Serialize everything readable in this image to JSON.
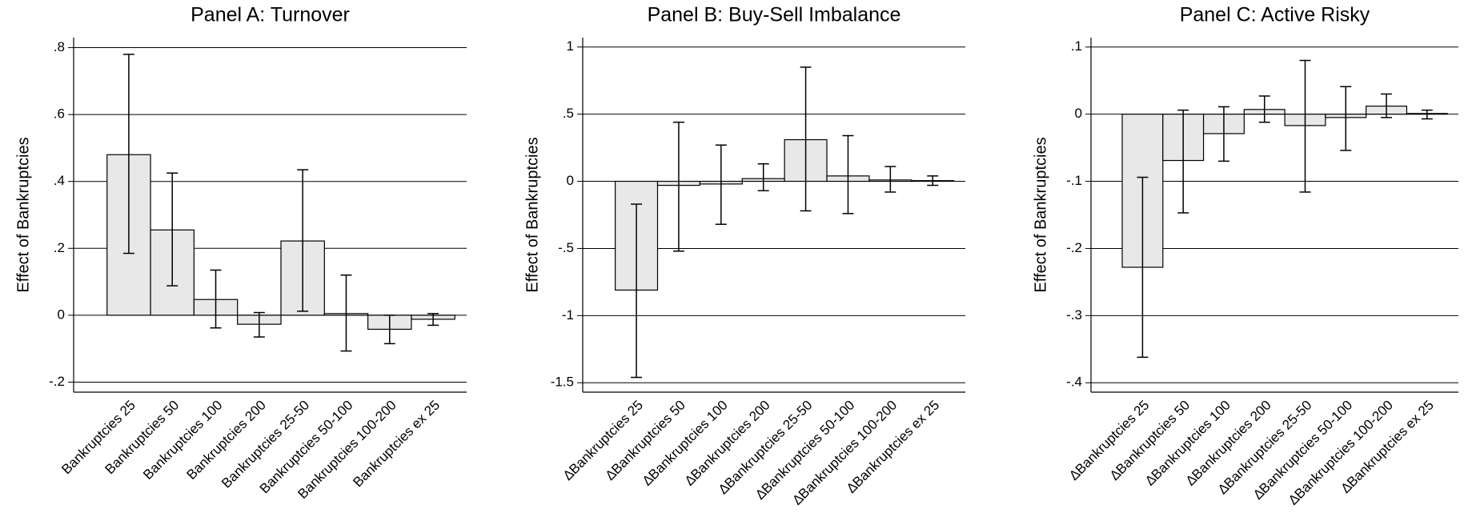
{
  "chart_data": [
    {
      "type": "bar",
      "title": "Panel A: Turnover",
      "ylabel": "Effect of Bankruptcies",
      "categories": [
        "Bankruptcies 25",
        "Bankruptcies 50",
        "Bankruptcies 100",
        "Bankruptcies 200",
        "Bankruptcies 25-50",
        "Bankruptcies 50-100",
        "Bankruptcies 100-200",
        "Bankruptcies ex 25"
      ],
      "values": [
        0.48,
        0.255,
        0.047,
        -0.027,
        0.222,
        0.005,
        -0.042,
        -0.012
      ],
      "lower": [
        0.185,
        0.088,
        -0.038,
        -0.065,
        0.012,
        -0.107,
        -0.085,
        -0.03
      ],
      "upper": [
        0.78,
        0.425,
        0.135,
        0.008,
        0.435,
        0.12,
        0.0,
        0.005
      ],
      "color": "#e8e8e8",
      "grid": true,
      "ylim": [
        -0.23,
        0.83
      ],
      "yticks": [
        {
          "value": -0.2,
          "label": "-.2"
        },
        0,
        {
          "value": 0.2,
          "label": ".2"
        },
        {
          "value": 0.4,
          "label": ".4"
        },
        {
          "value": 0.6,
          "label": ".6"
        },
        {
          "value": 0.8,
          "label": ".8"
        }
      ]
    },
    {
      "type": "bar",
      "title": "Panel B: Buy-Sell Imbalance",
      "ylabel": "Effect of Bankruptcies",
      "categories": [
        "∆Bankruptcies 25",
        "∆Bankruptcies 50",
        "∆Bankruptcies 100",
        "∆Bankruptcies 200",
        "∆Bankruptcies 25-50",
        "∆Bankruptcies 50-100",
        "∆Bankruptcies 100-200",
        "∆Bankruptcies ex 25"
      ],
      "values": [
        -0.81,
        -0.03,
        -0.02,
        0.02,
        0.31,
        0.04,
        0.01,
        0.005
      ],
      "lower": [
        -1.46,
        -0.52,
        -0.32,
        -0.07,
        -0.22,
        -0.24,
        -0.08,
        -0.03
      ],
      "upper": [
        -0.17,
        0.44,
        0.27,
        0.13,
        0.85,
        0.34,
        0.11,
        0.04
      ],
      "color": "#e8e8e8",
      "grid": true,
      "ylim": [
        -1.57,
        1.07
      ],
      "yticks": [
        {
          "value": -1.5,
          "label": "-1.5"
        },
        -1,
        {
          "value": -0.5,
          "label": "-.5"
        },
        0,
        {
          "value": 0.5,
          "label": ".5"
        },
        1
      ]
    },
    {
      "type": "bar",
      "title": "Panel C: Active Risky",
      "ylabel": "Effect of Bankruptcies",
      "categories": [
        "∆Bankruptcies 25",
        "∆Bankruptcies 50",
        "∆Bankruptcies 100",
        "∆Bankruptcies 200",
        "∆Bankruptcies 25-50",
        "∆Bankruptcies 50-100",
        "∆Bankruptcies 100-200",
        "∆Bankruptcies ex 25"
      ],
      "values": [
        -0.228,
        -0.069,
        -0.029,
        0.007,
        -0.017,
        -0.005,
        0.012,
        0.001
      ],
      "lower": [
        -0.362,
        -0.147,
        -0.07,
        -0.012,
        -0.116,
        -0.054,
        -0.005,
        -0.007
      ],
      "upper": [
        -0.094,
        0.006,
        0.011,
        0.027,
        0.08,
        0.041,
        0.03,
        0.006
      ],
      "color": "#e8e8e8",
      "grid": true,
      "ylim": [
        -0.414,
        0.114
      ],
      "yticks": [
        {
          "value": -0.4,
          "label": "-.4"
        },
        {
          "value": -0.3,
          "label": "-.3"
        },
        {
          "value": -0.2,
          "label": "-.2"
        },
        {
          "value": -0.1,
          "label": "-.1"
        },
        0,
        {
          "value": 0.1,
          "label": ".1"
        }
      ]
    }
  ]
}
